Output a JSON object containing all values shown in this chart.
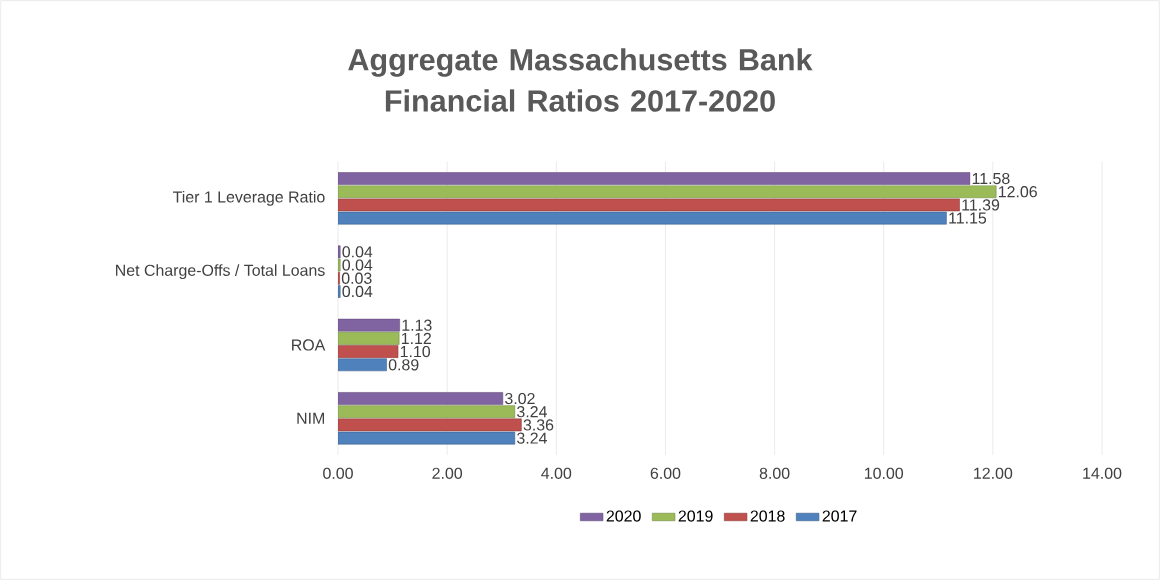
{
  "chart_data": {
    "type": "bar",
    "orientation": "horizontal",
    "title": "Aggregate Massachusetts Bank Financial Ratios 2017-2020",
    "categories": [
      "Tier 1 Leverage Ratio",
      "Net Charge-Offs / Total Loans",
      "ROA",
      "NIM"
    ],
    "series": [
      {
        "name": "2020",
        "color": "#8064a2",
        "values": [
          11.58,
          0.04,
          1.13,
          3.02
        ],
        "value_labels": [
          "11.58",
          "0.04",
          "1.13",
          "3.02"
        ]
      },
      {
        "name": "2019",
        "color": "#9bbb59",
        "values": [
          12.06,
          0.04,
          1.12,
          3.24
        ],
        "value_labels": [
          "12.06",
          "0.04",
          "1.12",
          "3.24"
        ]
      },
      {
        "name": "2018",
        "color": "#c0504d",
        "values": [
          11.39,
          0.03,
          1.1,
          3.36
        ],
        "value_labels": [
          "11.39",
          "0.03",
          "1.10",
          "3.36"
        ]
      },
      {
        "name": "2017",
        "color": "#4f81bd",
        "values": [
          11.15,
          0.04,
          0.89,
          3.24
        ],
        "value_labels": [
          "11.15",
          "0.04",
          "0.89",
          "3.24"
        ]
      }
    ],
    "xlim": [
      0,
      14
    ],
    "xticks": [
      {
        "value": 0,
        "label": "0.00"
      },
      {
        "value": 2,
        "label": "2.00"
      },
      {
        "value": 4,
        "label": "4.00"
      },
      {
        "value": 6,
        "label": "6.00"
      },
      {
        "value": 8,
        "label": "8.00"
      },
      {
        "value": 10,
        "label": "10.00"
      },
      {
        "value": 12,
        "label": "12.00"
      },
      {
        "value": 14,
        "label": "14.00"
      }
    ],
    "grid": "x",
    "legend": "bottom"
  }
}
